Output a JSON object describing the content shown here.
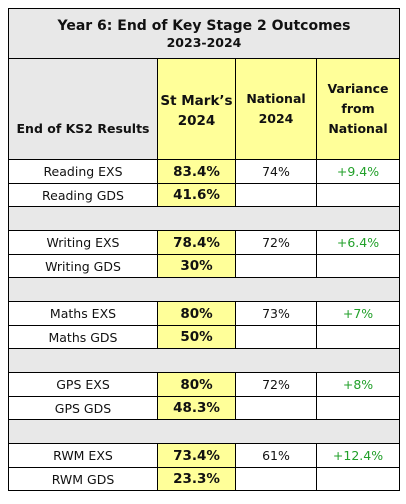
{
  "header": {
    "title": "Year 6:   End of Key Stage 2 Outcomes",
    "subtitle": "2023-2024"
  },
  "columns": {
    "label": "End of KS2 Results",
    "school_line1": "St Mark’s",
    "school_line2": "2024",
    "national_line1": "National",
    "national_line2": "2024",
    "variance_line1": "Variance",
    "variance_line2": "from",
    "variance_line3": "National"
  },
  "subjects": [
    {
      "exs_label": "Reading  EXS",
      "exs_school": "83.4%",
      "exs_national": "74%",
      "exs_variance": "+9.4%",
      "gds_label": "Reading GDS",
      "gds_school": "41.6%"
    },
    {
      "exs_label": "Writing EXS",
      "exs_school": "78.4%",
      "exs_national": "72%",
      "exs_variance": "+6.4%",
      "gds_label": "Writing GDS",
      "gds_school": "30%"
    },
    {
      "exs_label": "Maths EXS",
      "exs_school": "80%",
      "exs_national": "73%",
      "exs_variance": "+7%",
      "gds_label": "Maths GDS",
      "gds_school": "50%"
    },
    {
      "exs_label": "GPS EXS",
      "exs_school": "80%",
      "exs_national": "72%",
      "exs_variance": "+8%",
      "gds_label": "GPS GDS",
      "gds_school": "48.3%"
    },
    {
      "exs_label": "RWM EXS",
      "exs_school": "73.4%",
      "exs_national": "61%",
      "exs_variance": "+12.4%",
      "gds_label": "RWM GDS",
      "gds_school": "23.3%"
    }
  ],
  "colors": {
    "header_bg": "#e8e8e8",
    "highlight_bg": "#ffff99",
    "variance_text": "#22a02a"
  }
}
